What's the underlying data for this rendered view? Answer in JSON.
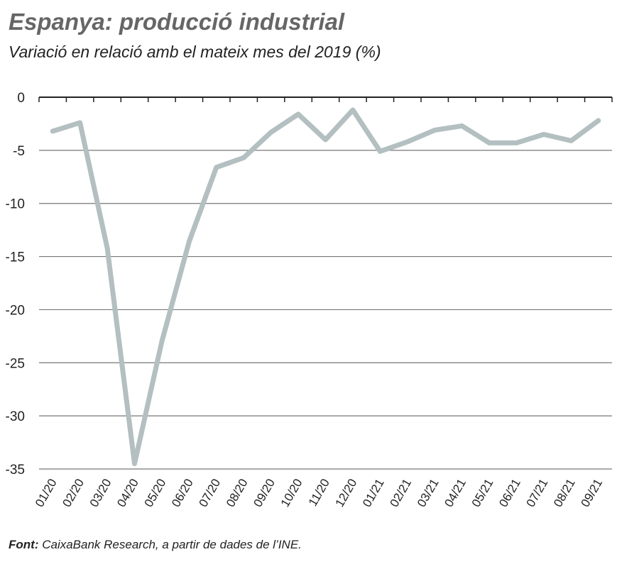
{
  "chart_data": {
    "type": "line",
    "title": "Espanya: producció industrial",
    "subtitle": "Variació en relació amb el mateix mes del 2019 (%)",
    "xlabel": "",
    "ylabel": "",
    "ylim": [
      -35,
      0
    ],
    "yticks": [
      "0",
      "-5",
      "-10",
      "-15",
      "-20",
      "-25",
      "-30",
      "-35"
    ],
    "ytick_values": [
      0,
      -5,
      -10,
      -15,
      -20,
      -25,
      -30,
      -35
    ],
    "categories": [
      "01/20",
      "02/20",
      "03/20",
      "04/20",
      "05/20",
      "06/20",
      "07/20",
      "08/20",
      "09/20",
      "10/20",
      "11/20",
      "12/20",
      "01/21",
      "02/21",
      "03/21",
      "04/21",
      "05/21",
      "06/21",
      "07/21",
      "08/21",
      "09/21"
    ],
    "series": [
      {
        "name": "Producció industrial",
        "color": "#b3bfc0",
        "values": [
          -3.2,
          -2.4,
          -14.2,
          -34.5,
          -23.0,
          -13.6,
          -6.6,
          -5.7,
          -3.3,
          -1.6,
          -4.0,
          -1.2,
          -5.1,
          -4.2,
          -3.1,
          -2.7,
          -4.3,
          -4.3,
          -3.5,
          -4.1,
          -2.2
        ]
      }
    ],
    "grid": true,
    "legend": "none"
  },
  "source": {
    "label": "Font:",
    "text": " CaixaBank Research, a partir de dades de l’INE."
  }
}
